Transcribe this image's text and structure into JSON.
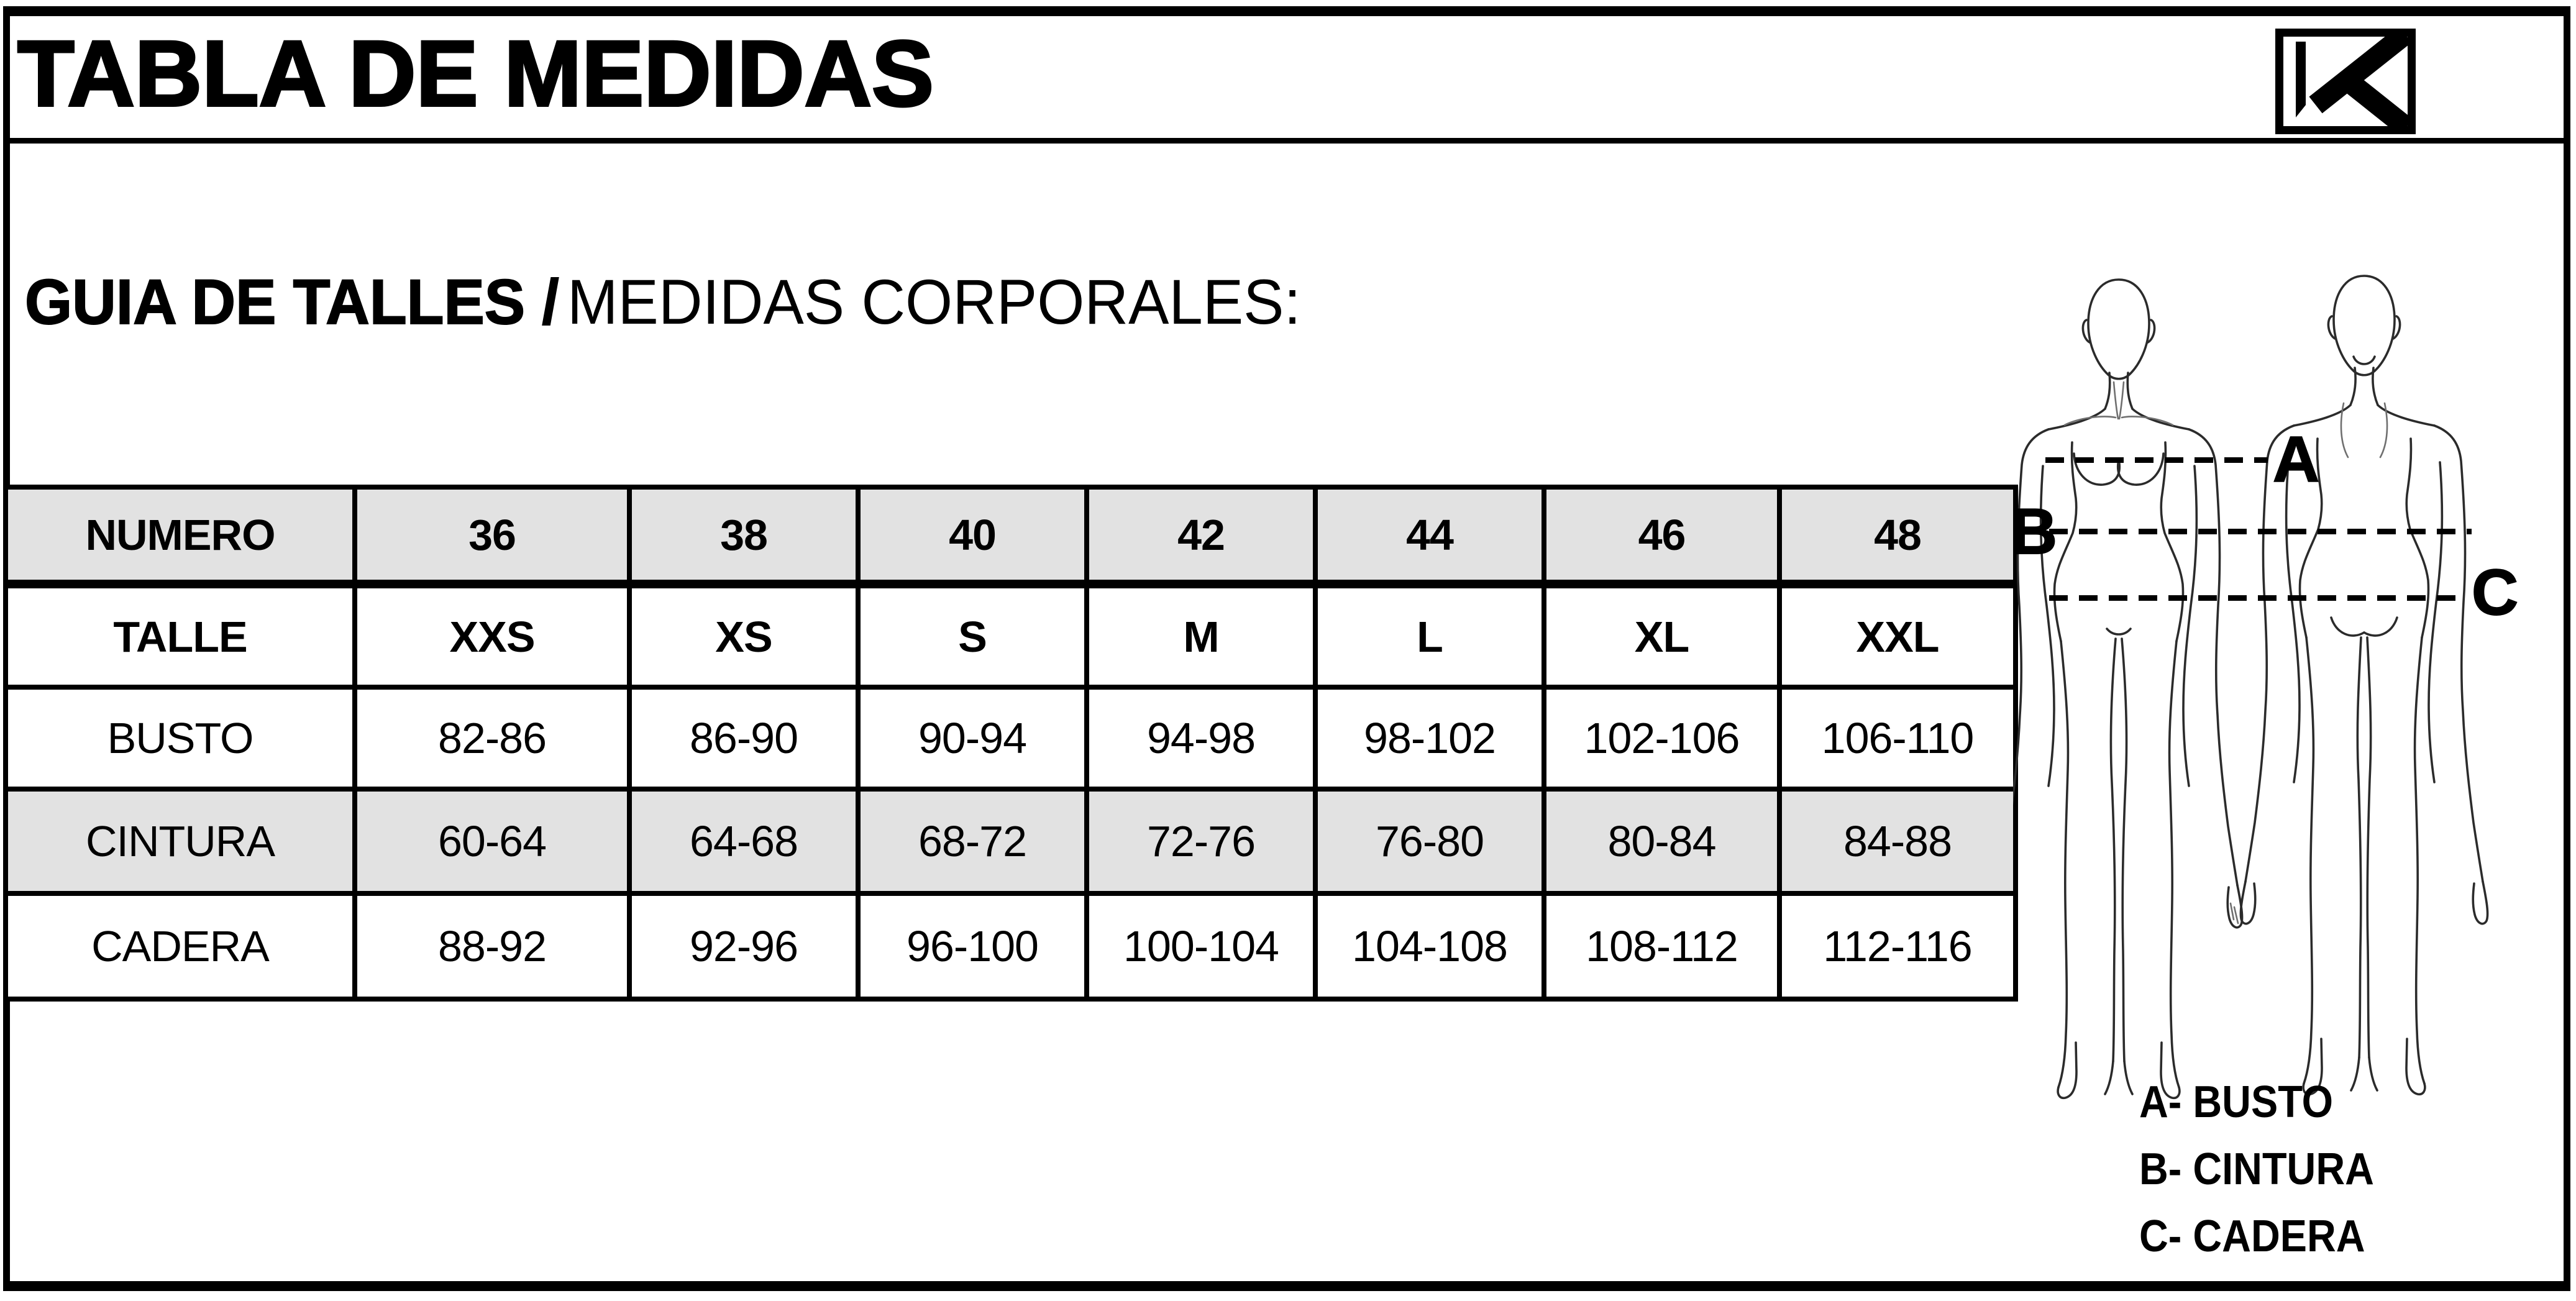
{
  "header": {
    "title": "TABLA DE MEDIDAS",
    "logo_icon": "k-brand-logo"
  },
  "subtitle": {
    "bold_part": "GUIA DE TALLES /",
    "regular_part": "MEDIDAS CORPORALES:"
  },
  "size_table": {
    "rows": [
      {
        "label": "NUMERO",
        "shaded": true,
        "bold": true,
        "values": [
          "36",
          "38",
          "40",
          "42",
          "44",
          "46",
          "48"
        ]
      },
      {
        "label": "TALLE",
        "shaded": false,
        "bold": true,
        "values": [
          "XXS",
          "XS",
          "S",
          "M",
          "L",
          "XL",
          "XXL"
        ]
      },
      {
        "label": "BUSTO",
        "shaded": false,
        "bold": false,
        "values": [
          "82-86",
          "86-90",
          "90-94",
          "94-98",
          "98-102",
          "102-106",
          "106-110"
        ]
      },
      {
        "label": "CINTURA",
        "shaded": true,
        "bold": false,
        "values": [
          "60-64",
          "64-68",
          "68-72",
          "72-76",
          "76-80",
          "80-84",
          "84-88"
        ]
      },
      {
        "label": "CADERA",
        "shaded": false,
        "bold": false,
        "values": [
          "88-92",
          "92-96",
          "96-100",
          "100-104",
          "104-108",
          "108-112",
          "112-116"
        ]
      }
    ]
  },
  "diagram": {
    "markers": {
      "a": "A",
      "b": "B",
      "c": "C"
    },
    "legend": [
      {
        "marker": "A-",
        "label": "BUSTO"
      },
      {
        "marker": "B-",
        "label": "CINTURA"
      },
      {
        "marker": "C-",
        "label": "CADERA"
      }
    ],
    "figures": [
      "female-front-outline",
      "female-back-outline"
    ]
  },
  "colors": {
    "background": "#ffffff",
    "ink": "#000000",
    "shaded_row": "#e2e2e2"
  }
}
